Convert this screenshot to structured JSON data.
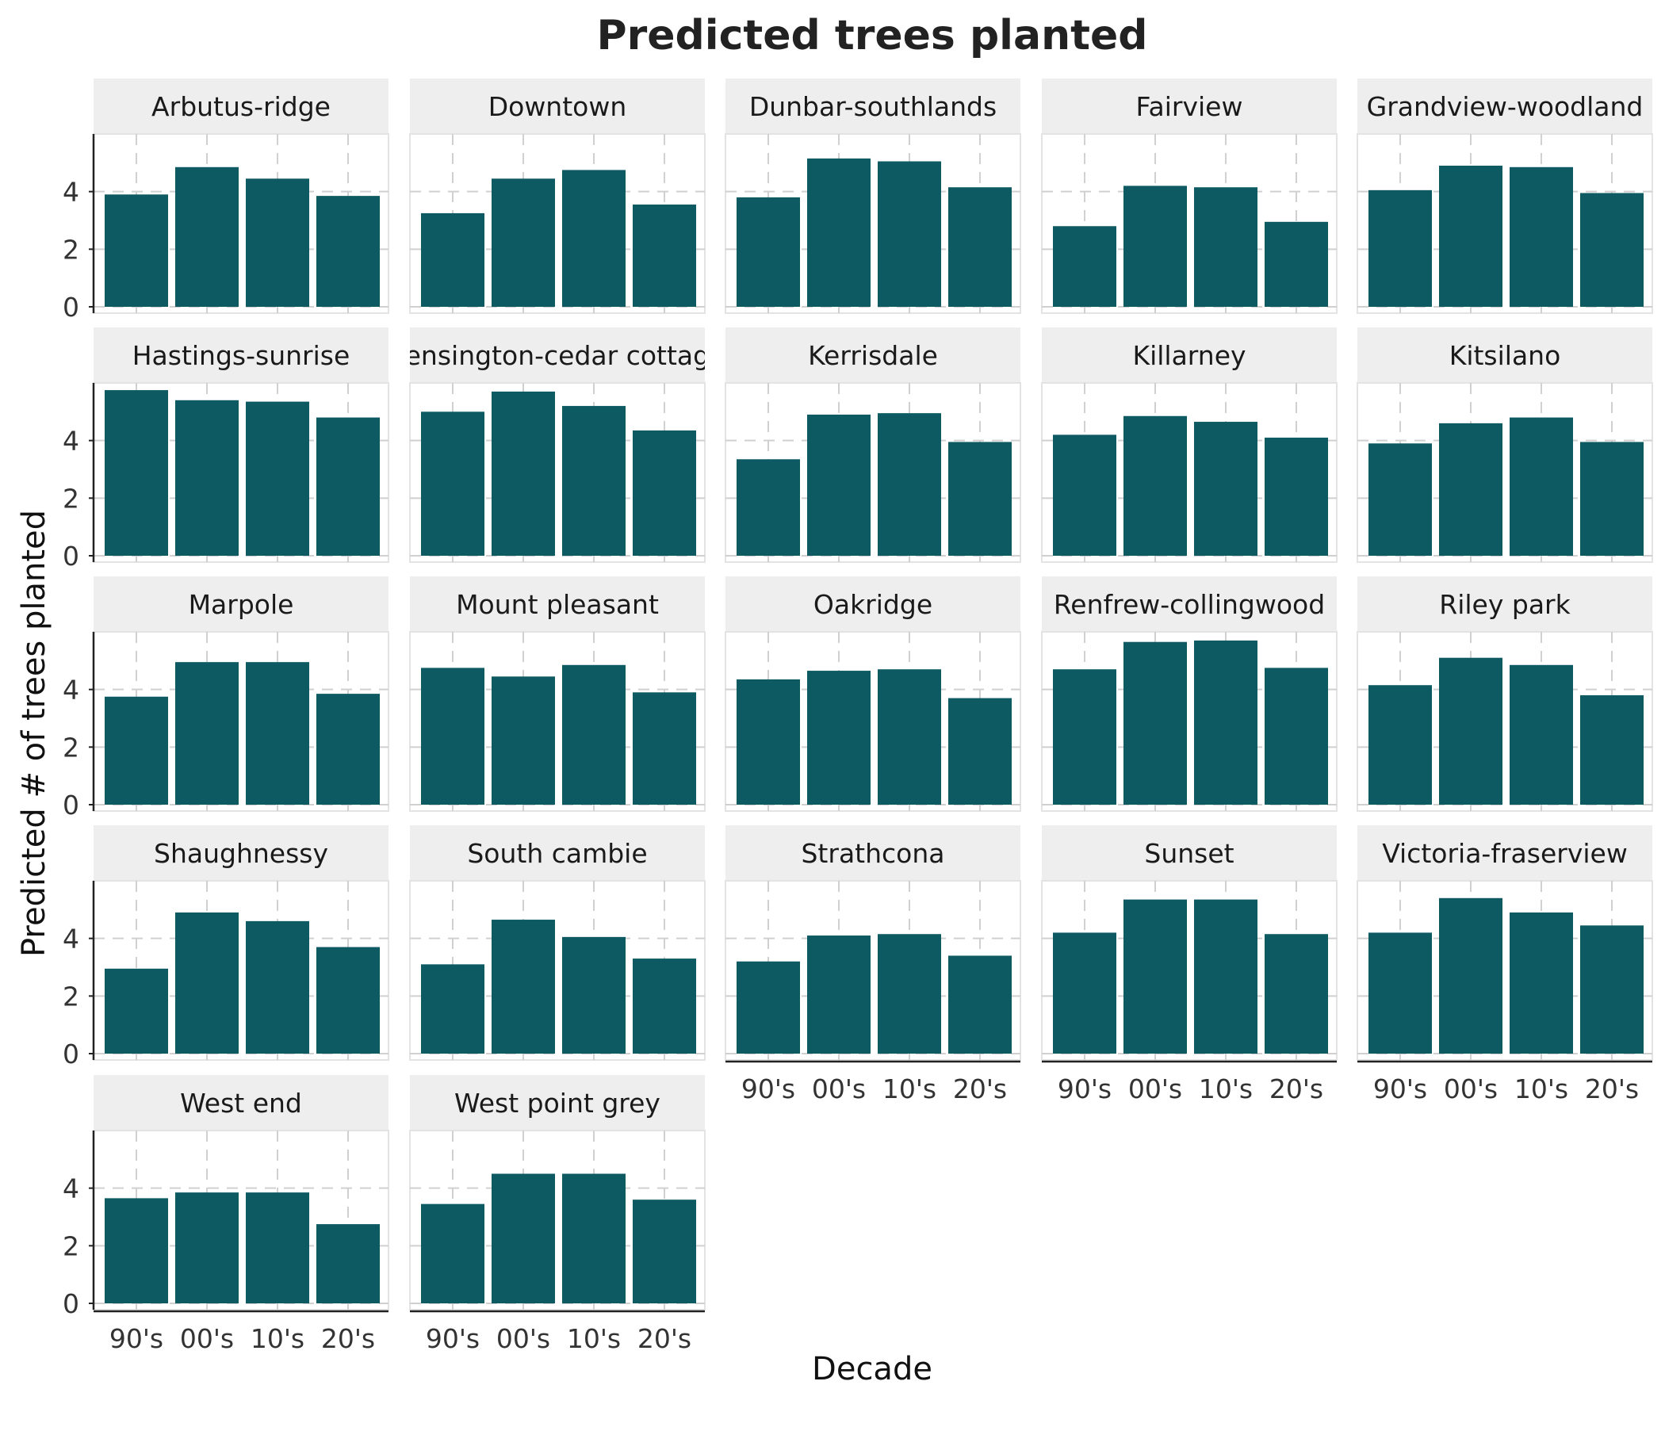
{
  "chart_data": {
    "type": "bar",
    "title": "Predicted trees planted",
    "xlabel": "Decade",
    "ylabel": "Predicted # of trees planted",
    "categories": [
      "90's",
      "00's",
      "10's",
      "20's"
    ],
    "ylim": [
      0,
      6
    ],
    "yticks": [
      "0",
      "2",
      "4"
    ],
    "facets": [
      {
        "name": "Arbutus-ridge",
        "values": [
          3.9,
          4.85,
          4.45,
          3.85
        ]
      },
      {
        "name": "Downtown",
        "values": [
          3.25,
          4.45,
          4.75,
          3.55
        ]
      },
      {
        "name": "Dunbar-southlands",
        "values": [
          3.8,
          5.15,
          5.05,
          4.15
        ]
      },
      {
        "name": "Fairview",
        "values": [
          2.8,
          4.2,
          4.15,
          2.95
        ]
      },
      {
        "name": "Grandview-woodland",
        "values": [
          4.05,
          4.9,
          4.85,
          3.95
        ]
      },
      {
        "name": "Hastings-sunrise",
        "values": [
          5.75,
          5.4,
          5.35,
          4.8
        ]
      },
      {
        "name": "Kensington-cedar cottage",
        "values": [
          5.0,
          5.7,
          5.2,
          4.35
        ]
      },
      {
        "name": "Kerrisdale",
        "values": [
          3.35,
          4.9,
          4.95,
          3.95
        ]
      },
      {
        "name": "Killarney",
        "values": [
          4.2,
          4.85,
          4.65,
          4.1
        ]
      },
      {
        "name": "Kitsilano",
        "values": [
          3.9,
          4.6,
          4.8,
          3.95
        ]
      },
      {
        "name": "Marpole",
        "values": [
          3.75,
          4.95,
          4.95,
          3.85
        ]
      },
      {
        "name": "Mount pleasant",
        "values": [
          4.75,
          4.45,
          4.85,
          3.9
        ]
      },
      {
        "name": "Oakridge",
        "values": [
          4.35,
          4.65,
          4.7,
          3.7
        ]
      },
      {
        "name": "Renfrew-collingwood",
        "values": [
          4.7,
          5.65,
          5.7,
          4.75
        ]
      },
      {
        "name": "Riley park",
        "values": [
          4.15,
          5.1,
          4.85,
          3.8
        ]
      },
      {
        "name": "Shaughnessy",
        "values": [
          2.95,
          4.9,
          4.6,
          3.7
        ]
      },
      {
        "name": "South cambie",
        "values": [
          3.1,
          4.65,
          4.05,
          3.3
        ]
      },
      {
        "name": "Strathcona",
        "values": [
          3.2,
          4.1,
          4.15,
          3.4
        ]
      },
      {
        "name": "Sunset",
        "values": [
          4.2,
          5.35,
          5.35,
          4.15
        ]
      },
      {
        "name": "Victoria-fraserview",
        "values": [
          4.2,
          5.4,
          4.9,
          4.45
        ]
      },
      {
        "name": "West end",
        "values": [
          3.65,
          3.85,
          3.85,
          2.75
        ]
      },
      {
        "name": "West point grey",
        "values": [
          3.45,
          4.5,
          4.5,
          3.6
        ]
      }
    ],
    "bar_color": "#0e5a63",
    "strip_color": "#eeeeee",
    "grid": true,
    "legend": "none"
  }
}
